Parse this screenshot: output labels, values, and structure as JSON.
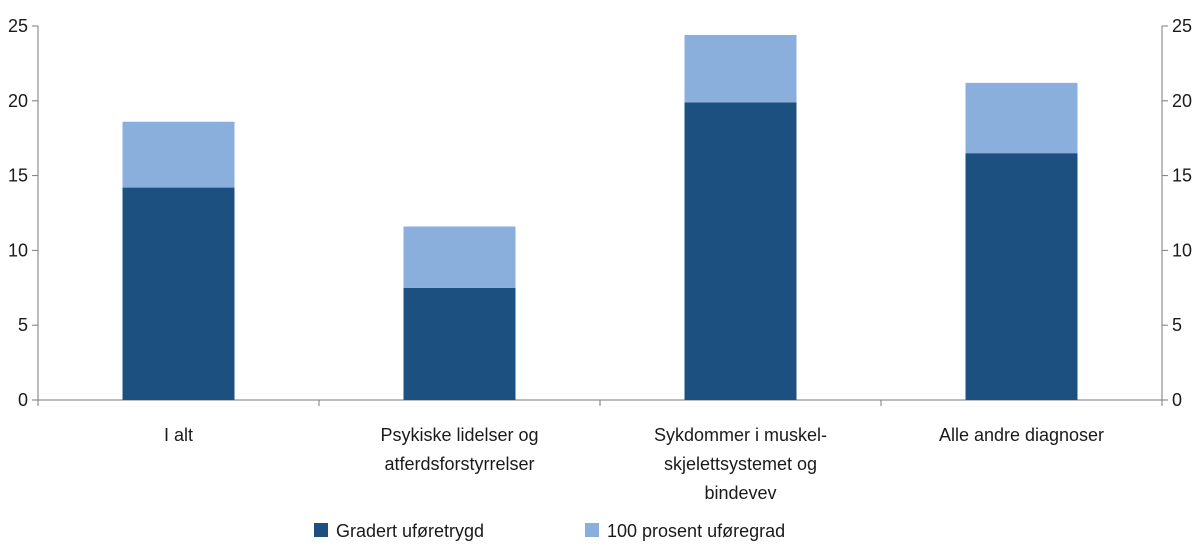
{
  "chart_data": {
    "type": "bar",
    "stacked": true,
    "categories": [
      [
        "I alt"
      ],
      [
        "Psykiske lidelser og",
        "atferdsforstyrrelser"
      ],
      [
        "Sykdommer i muskel-",
        "skjelettsystemet og",
        "bindevev"
      ],
      [
        "Alle andre diagnoser"
      ]
    ],
    "series": [
      {
        "name": "Gradert uføretrygd",
        "color": "#1c5080",
        "values": [
          14.2,
          7.5,
          19.9,
          16.5
        ]
      },
      {
        "name": "100 prosent uføregrad",
        "color": "#8aafdc",
        "values": [
          4.4,
          4.1,
          4.5,
          4.7
        ]
      }
    ],
    "ylim": [
      0,
      25
    ],
    "yticks": [
      0,
      5,
      10,
      15,
      20,
      25
    ],
    "secondary_y_axis": true,
    "grid": false,
    "legend_position": "bottom"
  }
}
